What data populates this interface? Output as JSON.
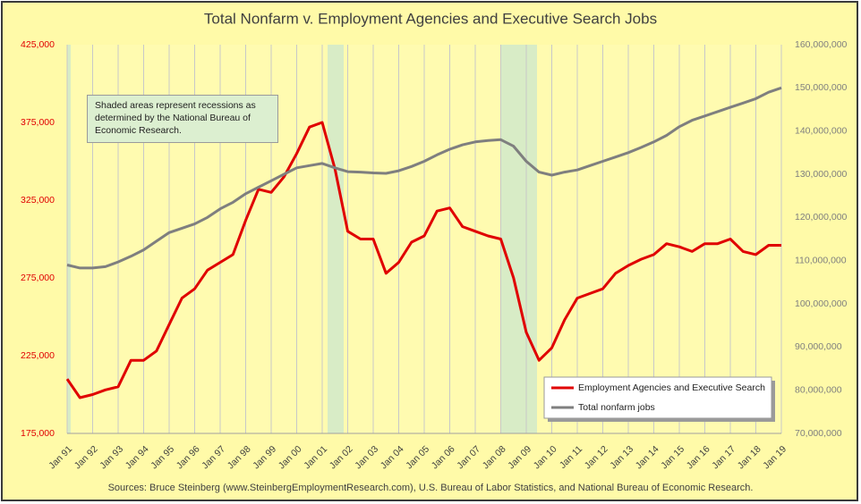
{
  "chart_data": {
    "type": "line",
    "title": "Total Nonfarm v. Employment Agencies and Executive Search Jobs",
    "annotation": "Shaded areas represent recessions as determined by the National Bureau of Economic Research.",
    "source": "Sources: Bruce Steinberg (www.SteinbergEmploymentResearch.com), U.S. Bureau of Labor Statistics, and National Bureau of Economic Research.",
    "categories": [
      "Jan 91",
      null,
      "Jan 92",
      null,
      "Jan 93",
      null,
      "Jan 94",
      null,
      "Jan 95",
      null,
      "Jan 96",
      null,
      "Jan 97",
      null,
      "Jan 98",
      null,
      "Jan 99",
      null,
      "Jan 00",
      null,
      "Jan 01",
      null,
      "Jan 02",
      null,
      "Jan 03",
      null,
      "Jan 04",
      null,
      "Jan 05",
      null,
      "Jan 06",
      null,
      "Jan 07",
      null,
      "Jan 08",
      null,
      "Jan 09",
      null,
      "Jan 10",
      null,
      "Jan 11",
      null,
      "Jan 12",
      null,
      "Jan 13",
      null,
      "Jan 14",
      null,
      "Jan 15",
      null,
      "Jan 16",
      null,
      "Jan 17",
      null,
      "Jan 18",
      null,
      "Jan 19"
    ],
    "series": [
      {
        "name": "Employment Agencies and Executive Search",
        "color": "#e00000",
        "axis": "y",
        "values": [
          210000,
          198000,
          200000,
          203000,
          205000,
          222000,
          222000,
          228000,
          245000,
          262000,
          268000,
          280000,
          285000,
          290000,
          312000,
          332000,
          330000,
          340000,
          355000,
          372000,
          375000,
          345000,
          305000,
          300000,
          300000,
          278000,
          285000,
          298000,
          302000,
          318000,
          320000,
          308000,
          305000,
          302000,
          300000,
          275000,
          240000,
          222000,
          230000,
          248000,
          262000,
          265000,
          268000,
          278000,
          283000,
          287000,
          290000,
          297000,
          295000,
          292000,
          297000,
          297000,
          300000,
          292000,
          290000,
          296000,
          296000
        ]
      },
      {
        "name": "Total nonfarm jobs",
        "color": "#7f7f7f",
        "axis": "y2",
        "values": [
          109000000,
          108300000,
          108300000,
          108600000,
          109700000,
          111000000,
          112500000,
          114500000,
          116500000,
          117500000,
          118500000,
          120000000,
          122000000,
          123500000,
          125500000,
          127000000,
          128500000,
          130000000,
          131500000,
          132000000,
          132500000,
          131500000,
          130600000,
          130500000,
          130300000,
          130200000,
          130800000,
          131800000,
          133000000,
          134500000,
          135800000,
          136800000,
          137500000,
          137800000,
          138000000,
          136500000,
          133000000,
          130500000,
          129800000,
          130500000,
          131000000,
          132000000,
          133000000,
          134000000,
          135000000,
          136200000,
          137500000,
          139000000,
          141000000,
          142500000,
          143500000,
          144500000,
          145500000,
          146500000,
          147500000,
          149000000,
          150000000
        ]
      }
    ],
    "ylim": [
      175000,
      425000
    ],
    "yticks": [
      {
        "value": 175000,
        "label": "175,000"
      },
      {
        "value": 225000,
        "label": "225,000"
      },
      {
        "value": 275000,
        "label": "275,000"
      },
      {
        "value": 325000,
        "label": "325,000"
      },
      {
        "value": 375000,
        "label": "375,000"
      },
      {
        "value": 425000,
        "label": "425,000"
      }
    ],
    "y2lim": [
      70000000,
      160000000
    ],
    "y2ticks": [
      {
        "value": 70000000,
        "label": "70,000,000"
      },
      {
        "value": 80000000,
        "label": "80,000,000"
      },
      {
        "value": 90000000,
        "label": "90,000,000"
      },
      {
        "value": 100000000,
        "label": "100,000,000"
      },
      {
        "value": 110000000,
        "label": "110,000,000"
      },
      {
        "value": 120000000,
        "label": "120,000,000"
      },
      {
        "value": 130000000,
        "label": "130,000,000"
      },
      {
        "value": 140000000,
        "label": "140,000,000"
      },
      {
        "value": 150000000,
        "label": "150,000,000"
      },
      {
        "value": 160000000,
        "label": "160,000,000"
      }
    ],
    "grid": true,
    "legend": "lower right"
  }
}
